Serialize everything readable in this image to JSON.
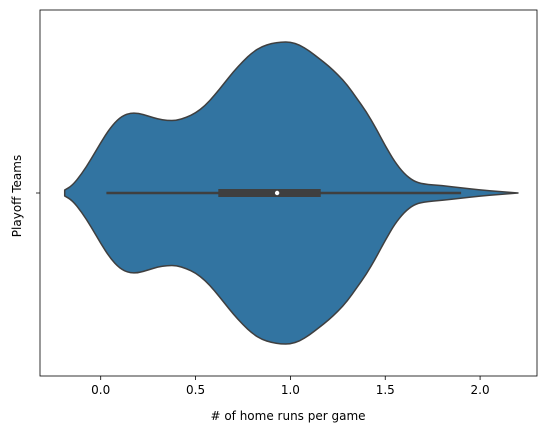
{
  "chart_data": {
    "type": "violin",
    "title": "",
    "xlabel": "# of home runs per game",
    "ylabel": "Playoff Teams",
    "xlim": [
      -0.32,
      2.3
    ],
    "xticks": [
      0.0,
      0.5,
      1.0,
      1.5,
      2.0
    ],
    "xtick_labels": [
      "0.0",
      "0.5",
      "1.0",
      "1.5",
      "2.0"
    ],
    "ytick_labels": [
      ""
    ],
    "grid": false,
    "colors": {
      "fill": "#3274a1",
      "edge": "#3f3f3f",
      "box": "#3f3f3f",
      "median": "#ffffff"
    },
    "density_profile": {
      "x": [
        -0.19,
        -0.15,
        -0.1,
        -0.05,
        0.0,
        0.05,
        0.1,
        0.15,
        0.2,
        0.25,
        0.3,
        0.35,
        0.4,
        0.45,
        0.5,
        0.55,
        0.6,
        0.65,
        0.7,
        0.75,
        0.8,
        0.85,
        0.9,
        0.95,
        1.0,
        1.05,
        1.1,
        1.15,
        1.2,
        1.25,
        1.3,
        1.35,
        1.4,
        1.45,
        1.5,
        1.55,
        1.6,
        1.65,
        1.7,
        1.8,
        1.9,
        2.0,
        2.1,
        2.2
      ],
      "half_width": [
        0.02,
        0.05,
        0.13,
        0.23,
        0.34,
        0.44,
        0.51,
        0.54,
        0.54,
        0.52,
        0.5,
        0.49,
        0.49,
        0.51,
        0.54,
        0.59,
        0.66,
        0.74,
        0.82,
        0.89,
        0.95,
        0.99,
        1.01,
        1.02,
        1.02,
        1.0,
        0.96,
        0.91,
        0.86,
        0.8,
        0.73,
        0.64,
        0.55,
        0.44,
        0.32,
        0.21,
        0.13,
        0.08,
        0.06,
        0.05,
        0.035,
        0.02,
        0.01,
        0.0
      ]
    },
    "box": {
      "whisker_low": 0.03,
      "q1": 0.62,
      "median": 0.93,
      "q3": 1.16,
      "whisker_high": 1.9
    }
  }
}
